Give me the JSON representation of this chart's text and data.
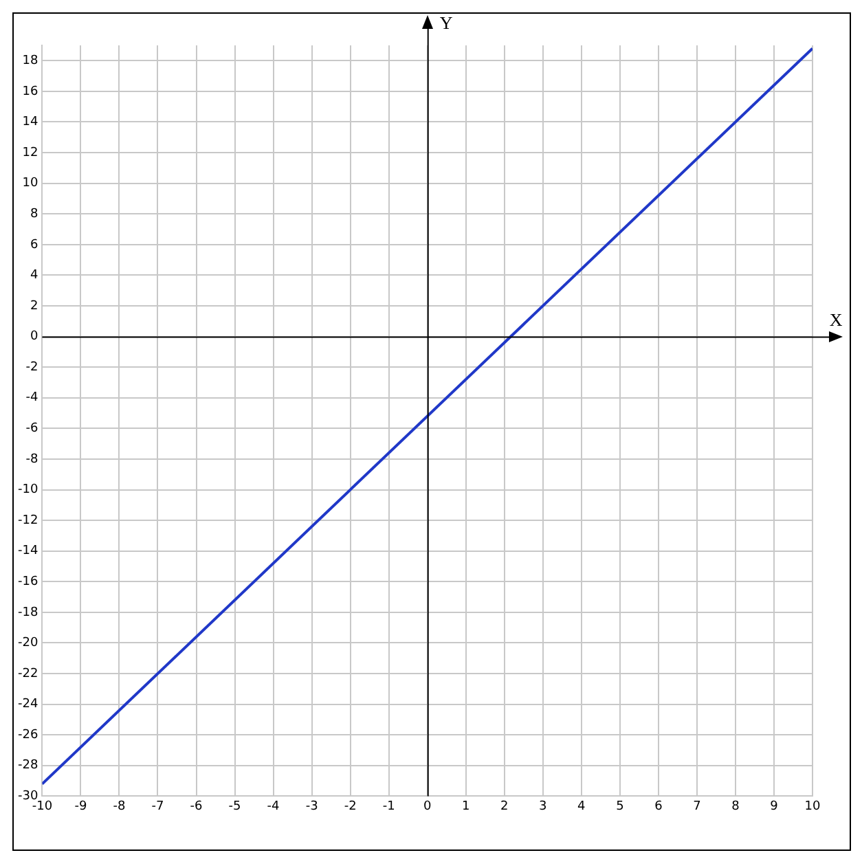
{
  "chart_data": {
    "type": "line",
    "xlabel": "X",
    "ylabel": "Y",
    "x": [
      -10,
      10
    ],
    "series": [
      {
        "color": "#2038c8",
        "values": [
          -29.2,
          18.8
        ]
      }
    ],
    "xlim": [
      -10,
      10
    ],
    "xticks": [
      -10,
      -9,
      -8,
      -7,
      -6,
      -5,
      -4,
      -3,
      -2,
      -1,
      0,
      1,
      2,
      3,
      4,
      5,
      6,
      7,
      8,
      9,
      10
    ],
    "ylim": [
      -30,
      19
    ],
    "yticks": [
      -30,
      -28,
      -26,
      -24,
      -22,
      -20,
      -18,
      -16,
      -14,
      -12,
      -10,
      -8,
      -6,
      -4,
      -2,
      0,
      2,
      4,
      6,
      8,
      10,
      12,
      14,
      16,
      18
    ],
    "grid": true,
    "legend": false,
    "marker": "none",
    "line_style": "solid"
  }
}
